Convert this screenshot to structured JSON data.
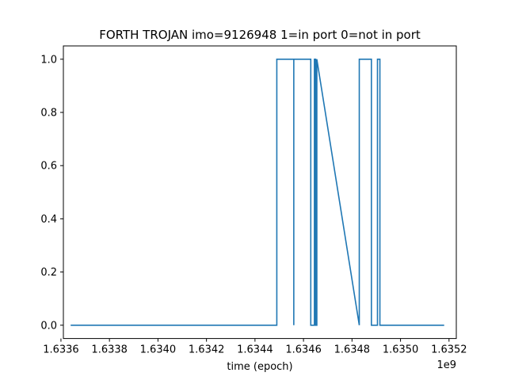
{
  "chart_data": {
    "type": "line",
    "title": "FORTH TROJAN imo=9126948 1=in port 0=not in port",
    "xlabel": "time (epoch)",
    "ylabel": "",
    "x_offset_label": "1e9",
    "xlim": [
      1.63361,
      1.63523
    ],
    "ylim": [
      -0.05,
      1.05
    ],
    "xticks": [
      1.6336,
      1.6338,
      1.634,
      1.6342,
      1.6344,
      1.6346,
      1.6348,
      1.635,
      1.6352
    ],
    "xtick_labels": [
      "1.6336",
      "1.6338",
      "1.6340",
      "1.6342",
      "1.6344",
      "1.6346",
      "1.6348",
      "1.6350",
      "1.6352"
    ],
    "yticks": [
      0.0,
      0.2,
      0.4,
      0.6,
      0.8,
      1.0
    ],
    "ytick_labels": [
      "0.0",
      "0.2",
      "0.4",
      "0.6",
      "0.8",
      "1.0"
    ],
    "grid": false,
    "colors": {
      "series": "#1f77b4"
    },
    "series": [
      {
        "x": [
          1.63364,
          1.63449,
          1.63449,
          1.63456,
          1.63456,
          1.63456,
          1.63456,
          1.63463,
          1.63463,
          1.634645,
          1.634645,
          1.63465,
          1.63465,
          1.634655,
          1.634655,
          1.63483,
          1.63483,
          1.63488,
          1.63488,
          1.634905,
          1.634905,
          1.634915,
          1.634915,
          1.63518
        ],
        "y": [
          0,
          0,
          1,
          1,
          0,
          0,
          1,
          1,
          0,
          0,
          1,
          1,
          0,
          0,
          1,
          0,
          1,
          1,
          0,
          0,
          1,
          1,
          0,
          0
        ]
      }
    ]
  }
}
